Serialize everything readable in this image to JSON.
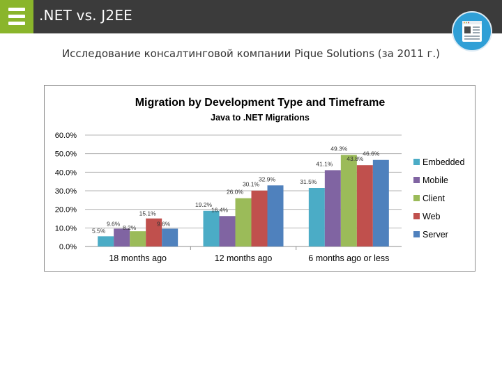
{
  "header": {
    "title": ".NET vs. J2EE",
    "subtitle": "Исследование консалтинговой компании Pique Solutions  (за 2011 г.)"
  },
  "icons": {
    "menu": "hamburger-menu-icon",
    "badge": "document-icon"
  },
  "colors": {
    "topbar": "#3b3b3b",
    "menu_accent": "#8ab52b",
    "badge": "#2f9fd6"
  },
  "chart_data": {
    "type": "bar",
    "title": "Migration by Development Type and Timeframe",
    "subtitle": "Java to .NET Migrations",
    "categories": [
      "18 months ago",
      "12 months ago",
      "6 months ago or less"
    ],
    "series": [
      {
        "name": "Embedded",
        "color": "#4bacc6",
        "values": [
          5.5,
          19.2,
          31.5
        ],
        "labels": [
          "5.5%",
          "19.2%",
          "31.5%"
        ]
      },
      {
        "name": "Mobile",
        "color": "#8064a2",
        "values": [
          9.6,
          16.4,
          41.1
        ],
        "labels": [
          "9.6%",
          "16.4%",
          "41.1%"
        ]
      },
      {
        "name": "Client",
        "color": "#9bbb59",
        "values": [
          8.2,
          26.0,
          49.3
        ],
        "labels": [
          "8.2%",
          "26.0%",
          "49.3%"
        ]
      },
      {
        "name": "Web",
        "color": "#c0504d",
        "values": [
          15.1,
          30.1,
          43.8
        ],
        "labels": [
          "15.1%",
          "30.1%",
          "43.8%"
        ]
      },
      {
        "name": "Server",
        "color": "#4f81bd",
        "values": [
          9.6,
          32.9,
          46.6
        ],
        "labels": [
          "9.6%",
          "32.9%",
          "46.6%"
        ]
      }
    ],
    "ylim": [
      0,
      60
    ],
    "yticks": [
      "0.0%",
      "10.0%",
      "20.0%",
      "30.0%",
      "40.0%",
      "50.0%",
      "60.0%"
    ],
    "grid": true,
    "legend": "right",
    "xlabel": "",
    "ylabel": ""
  }
}
